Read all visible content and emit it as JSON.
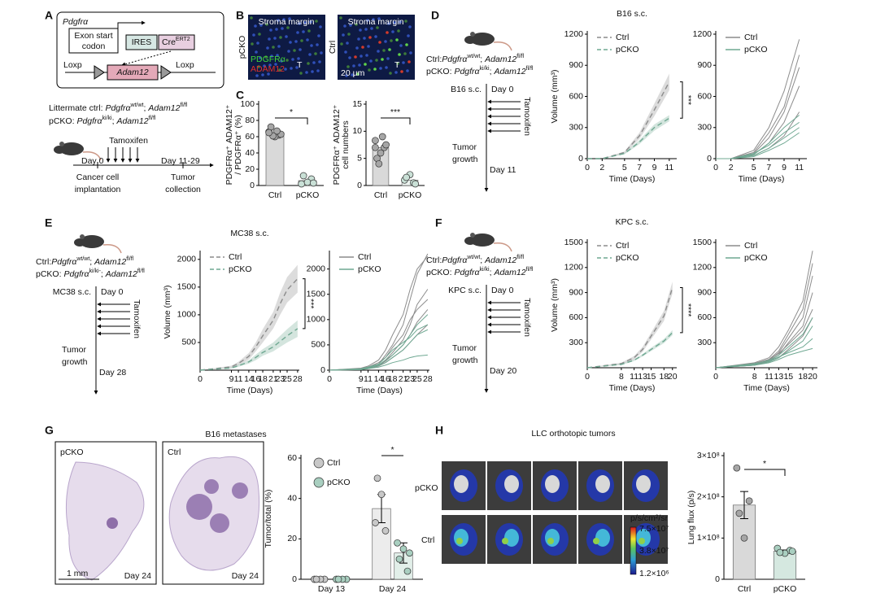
{
  "figure": {
    "panels": [
      "A",
      "B",
      "C",
      "D",
      "E",
      "F",
      "G",
      "H"
    ],
    "a": {
      "gene": "Pdgfrα",
      "exon": [
        "Exon start",
        "codon"
      ],
      "ires": "IRES",
      "cre": [
        "Cre",
        "ERT2"
      ],
      "loxp": [
        "Loxp",
        "Loxp"
      ],
      "adam": "Adam12",
      "ctrl": [
        "Littermate ctrl: ",
        "Pdgfrα",
        "wt/wt",
        "; ",
        "Adam12",
        "fl/fl"
      ],
      "pcko": [
        "pCKO: ",
        "Pdgfrα",
        "ki/ki",
        "; ",
        "Adam12",
        "fl/fl"
      ],
      "tamoxifen": "Tamoxifen",
      "day0": "Day 0",
      "dayend": "Day 11-29",
      "start": [
        "Cancer cell",
        "implantation"
      ],
      "end": [
        "Tumor",
        "collection"
      ]
    },
    "b": {
      "margin": [
        "Stroma margin",
        "Stroma margin"
      ],
      "rows": [
        "pCKO",
        "Ctrl"
      ],
      "stains": [
        "PDGFRα",
        "ADAM12"
      ],
      "t": [
        "T",
        "T"
      ],
      "scale": "20 µm"
    },
    "schemes": [
      {
        "ctrl": [
          "Ctrl:",
          "Pdgfrα",
          "wt/wt",
          "; ",
          "Adam12",
          "fl/fl"
        ],
        "pcko": [
          "pCKO: ",
          "Pdgfrα",
          "ki/ki",
          "; ",
          "Adam12",
          "fl/fl"
        ],
        "model": "B16 s.c.",
        "day0": "Day 0",
        "tamoxifen": "Tamoxifen",
        "tumor": [
          "Tumor",
          "growth"
        ],
        "end": "Day 11"
      },
      {
        "ctrl": [
          "Ctrl:",
          "Pdgfrα",
          "wt/wt",
          "; ",
          "Adam12",
          "fl/fl"
        ],
        "pcko": [
          "pCKO: ",
          "Pdgfrα",
          "ki/ki-",
          "; ",
          "Adam12",
          "fl/fl"
        ],
        "model": "MC38 s.c.",
        "day0": "Day 0",
        "tamoxifen": "Tamoxifen",
        "tumor": [
          "Tumor",
          "growth"
        ],
        "end": "Day 28"
      },
      {
        "ctrl": [
          "Ctrl:",
          "Pdgfrα",
          "wt/wt",
          "; ",
          "Adam12",
          "fl/fl"
        ],
        "pcko": [
          "pCKO: ",
          "Pdgfrα",
          "ki/ki",
          "; ",
          "Adam12",
          "fl/fl"
        ],
        "model": "KPC s.c.",
        "day0": "Day 0",
        "tamoxifen": "Tamoxifen",
        "tumor": [
          "Tumor",
          "growth"
        ],
        "end": "Day 20"
      }
    ],
    "g": {
      "title": "B16 metastases",
      "labels": [
        "pCKO",
        "Ctrl"
      ],
      "days": [
        "Day 24",
        "Day 24"
      ],
      "scale": "1 mm"
    },
    "h": {
      "title": "LLC orthotopic tumors",
      "rows": [
        "pCKO",
        "Ctrl"
      ],
      "unit": "p/s/cm²/sr",
      "scale": [
        "7.5×10⁷",
        "3.8×10⁷",
        "1.2×10⁶"
      ]
    }
  },
  "chart_data": [
    {
      "type": "bar",
      "ylabel": [
        "PDGFRα⁺ ADAM12⁺",
        "/ PDGFRα⁺ (%)"
      ],
      "categories": [
        "Ctrl",
        "pCKO"
      ],
      "values": [
        65,
        6
      ],
      "points": [
        [
          66,
          62,
          60,
          72,
          63,
          67,
          61,
          65
        ],
        [
          2,
          8,
          4,
          12,
          3
        ]
      ],
      "colors": [
        "#a6a6a6",
        "#c9e0d6"
      ],
      "bar_colors": [
        "#d9d9d9",
        "#eef5f2"
      ],
      "ylim": [
        0,
        100
      ],
      "yticks": [
        0,
        20,
        40,
        60,
        80,
        100
      ],
      "sig": "*"
    },
    {
      "type": "bar",
      "ylabel": [
        "PDGFRα⁺ ADAM12⁺",
        "cell numbers"
      ],
      "categories": [
        "Ctrl",
        "pCKO"
      ],
      "values": [
        7,
        1
      ],
      "points": [
        [
          8.3,
          7,
          6,
          5,
          7.5,
          9,
          4,
          7
        ],
        [
          1,
          0.5,
          2,
          1.5,
          0.3
        ]
      ],
      "colors": [
        "#a6a6a6",
        "#c9e0d6"
      ],
      "bar_colors": [
        "#d9d9d9",
        "#eef5f2"
      ],
      "ylim": [
        0,
        15
      ],
      "yticks": [
        0,
        5,
        10,
        15
      ],
      "sig": "***"
    },
    {
      "type": "line",
      "title": "B16 s.c.",
      "xlabel": "Time (Days)",
      "ylabel": "Volume (mm³)",
      "x": [
        0,
        2,
        5,
        7,
        9,
        11
      ],
      "xlim": [
        0,
        12
      ],
      "xticks": [
        0,
        2,
        5,
        7,
        9,
        11
      ],
      "ylim": [
        0,
        1200
      ],
      "yticks": [
        0,
        300,
        600,
        900,
        1200
      ],
      "dashed": true,
      "sig": "***",
      "series": [
        {
          "name": "Ctrl",
          "color": "#8c8c8c",
          "values": [
            0,
            0,
            60,
            220,
            470,
            740
          ],
          "errors": [
            0,
            0,
            10,
            30,
            60,
            80
          ]
        },
        {
          "name": "pCKO",
          "color": "#6fa892",
          "values": [
            0,
            0,
            50,
            160,
            300,
            390
          ],
          "errors": [
            0,
            0,
            8,
            20,
            30,
            30
          ]
        }
      ]
    },
    {
      "type": "line",
      "xlabel": "Time (Days)",
      "x": [
        0,
        2,
        5,
        7,
        9,
        11
      ],
      "xlim": [
        0,
        12
      ],
      "xticks": [
        0,
        2,
        5,
        7,
        9,
        11
      ],
      "ylim": [
        0,
        1200
      ],
      "yticks": [
        0,
        300,
        600,
        900,
        1200
      ],
      "series": [
        {
          "name": "Ctrl",
          "color": "#8c8c8c",
          "values": [
            [
              0,
              0,
              80,
              300,
              650,
              1150
            ],
            [
              0,
              0,
              60,
              250,
              500,
              1000
            ],
            [
              0,
              0,
              50,
              200,
              450,
              880
            ],
            [
              0,
              0,
              40,
              150,
              350,
              700
            ],
            [
              0,
              0,
              30,
              100,
              220,
              450
            ]
          ]
        },
        {
          "name": "pCKO",
          "color": "#6fa892",
          "values": [
            [
              0,
              0,
              40,
              150,
              300,
              420
            ],
            [
              0,
              0,
              50,
              130,
              250,
              350
            ],
            [
              0,
              0,
              30,
              100,
              200,
              300
            ],
            [
              0,
              0,
              20,
              80,
              150,
              250
            ]
          ]
        }
      ]
    },
    {
      "type": "line",
      "title": "MC38 s.c.",
      "xlabel": "Time (Days)",
      "ylabel": "Volume (mm³)",
      "x": [
        0,
        9,
        11,
        14,
        16,
        18,
        21,
        23,
        25,
        28
      ],
      "xlim": [
        0,
        28.5
      ],
      "xticks": [
        0,
        9,
        11,
        14,
        16,
        18,
        21,
        23,
        25,
        28
      ],
      "ylim": [
        0,
        2100
      ],
      "yticks": [
        500,
        1000,
        1500,
        2000
      ],
      "dashed": true,
      "sig": "***",
      "series": [
        {
          "name": "Ctrl",
          "color": "#8c8c8c",
          "values": [
            0,
            60,
            120,
            250,
            420,
            620,
            900,
            1200,
            1450,
            1650
          ],
          "errors": [
            0,
            20,
            30,
            60,
            80,
            120,
            150,
            200,
            230,
            250
          ]
        },
        {
          "name": "pCKO",
          "color": "#6fa892",
          "values": [
            0,
            40,
            80,
            150,
            230,
            320,
            420,
            520,
            620,
            750
          ],
          "errors": [
            0,
            10,
            20,
            30,
            50,
            60,
            80,
            100,
            120,
            150
          ]
        }
      ]
    },
    {
      "type": "line",
      "xlabel": "Time (Days)",
      "x": [
        0,
        9,
        11,
        14,
        16,
        18,
        21,
        23,
        25,
        28
      ],
      "xlim": [
        0,
        28.5
      ],
      "xticks": [
        0,
        9,
        11,
        14,
        16,
        18,
        21,
        23,
        25,
        28
      ],
      "ylim": [
        0,
        2300
      ],
      "yticks": [
        0,
        500,
        1000,
        1500,
        2000
      ],
      "series": [
        {
          "name": "Ctrl",
          "color": "#8c8c8c",
          "values": [
            [
              0,
              30,
              60,
              120,
              300,
              500,
              900,
              1400,
              1900,
              2300
            ],
            [
              0,
              40,
              80,
              200,
              400,
              700,
              1100,
              1600,
              2000,
              2250
            ],
            [
              0,
              20,
              50,
              100,
              200,
              350,
              600,
              900,
              1300,
              1600
            ],
            [
              0,
              30,
              60,
              150,
              250,
              450,
              700,
              1000,
              1200,
              1400
            ],
            [
              0,
              20,
              40,
              90,
              180,
              300,
              500,
              700,
              950,
              1200
            ],
            [
              0,
              10,
              30,
              80,
              150,
              250,
              400,
              550,
              700,
              900
            ]
          ]
        },
        {
          "name": "pCKO",
          "color": "#6fa892",
          "values": [
            [
              0,
              20,
              50,
              100,
              200,
              300,
              500,
              700,
              900,
              1100
            ],
            [
              0,
              30,
              60,
              120,
              250,
              400,
              550,
              650,
              800,
              900
            ],
            [
              0,
              20,
              40,
              90,
              150,
              250,
              400,
              550,
              700,
              800
            ],
            [
              0,
              10,
              30,
              60,
              100,
              150,
              200,
              250,
              280,
              300
            ]
          ]
        }
      ]
    },
    {
      "type": "line",
      "title": "KPC s.c.",
      "xlabel": "Time (Days)",
      "ylabel": "Volume (mm³)",
      "x": [
        0,
        8,
        11,
        13,
        15,
        18,
        20
      ],
      "xlim": [
        0,
        21
      ],
      "xticks": [
        0,
        8,
        11,
        13,
        15,
        18,
        20
      ],
      "ylim": [
        0,
        1500
      ],
      "yticks": [
        300,
        600,
        900,
        1200,
        1500
      ],
      "dashed": true,
      "sig": "****",
      "series": [
        {
          "name": "Ctrl",
          "color": "#8c8c8c",
          "values": [
            0,
            50,
            120,
            220,
            380,
            620,
            960
          ],
          "errors": [
            0,
            10,
            20,
            30,
            40,
            60,
            70
          ]
        },
        {
          "name": "pCKO",
          "color": "#6fa892",
          "values": [
            0,
            40,
            90,
            150,
            220,
            320,
            420
          ],
          "errors": [
            0,
            8,
            10,
            15,
            20,
            25,
            30
          ]
        }
      ]
    },
    {
      "type": "line",
      "xlabel": "Time (Days)",
      "x": [
        0,
        8,
        11,
        13,
        15,
        18,
        20
      ],
      "xlim": [
        0,
        21
      ],
      "xticks": [
        0,
        8,
        11,
        13,
        15,
        18,
        20
      ],
      "ylim": [
        0,
        1500
      ],
      "yticks": [
        300,
        600,
        900,
        1200,
        1500
      ],
      "series": [
        {
          "name": "Ctrl",
          "color": "#8c8c8c",
          "values": [
            [
              0,
              60,
              120,
              250,
              450,
              800,
              1400
            ],
            [
              0,
              50,
              100,
              200,
              400,
              700,
              1250
            ],
            [
              0,
              40,
              90,
              180,
              350,
              600,
              1100
            ],
            [
              0,
              30,
              80,
              150,
              300,
              500,
              900
            ],
            [
              0,
              50,
              100,
              170,
              280,
              450,
              700
            ],
            [
              0,
              40,
              70,
              120,
              220,
              380,
              600
            ]
          ]
        },
        {
          "name": "pCKO",
          "color": "#6fa892",
          "values": [
            [
              0,
              40,
              90,
              150,
              250,
              400,
              600
            ],
            [
              0,
              30,
              70,
              120,
              200,
              320,
              500
            ],
            [
              0,
              50,
              80,
              130,
              180,
              250,
              350
            ],
            [
              0,
              30,
              60,
              100,
              150,
              200,
              230
            ]
          ]
        }
      ]
    },
    {
      "type": "bar",
      "ylabel": "Tumor/total (%)",
      "categories": [
        "Day 13",
        "Day 24"
      ],
      "ylim": [
        0,
        60
      ],
      "yticks": [
        0,
        20,
        40,
        60
      ],
      "sig": "*",
      "series": [
        {
          "name": "Ctrl",
          "color": "#c8c8c8",
          "bar_color": "#ececec",
          "values": [
            0,
            35
          ],
          "errors": [
            0,
            7
          ],
          "points": [
            [
              0,
              0,
              0,
              0
            ],
            [
              28,
              24,
              42,
              50
            ]
          ]
        },
        {
          "name": "pCKO",
          "color": "#a9cfc0",
          "bar_color": "#e2efe9",
          "values": [
            0,
            13
          ],
          "errors": [
            0,
            5
          ],
          "points": [
            [
              0,
              0,
              0,
              0
            ],
            [
              18,
              4,
              15,
              10,
              13
            ]
          ]
        }
      ]
    },
    {
      "type": "bar",
      "ylabel": "Lung flux (p/s)",
      "categories": [
        "Ctrl",
        "pCKO"
      ],
      "values": [
        180000000,
        68000000
      ],
      "errors": [
        33000000,
        3000000
      ],
      "points": [
        [
          270000000,
          190000000,
          100000000,
          160000000
        ],
        [
          75000000,
          70000000,
          63000000,
          65000000,
          68000000
        ]
      ],
      "colors": [
        "#a6a6a6",
        "#a9cfc0"
      ],
      "bar_colors": [
        "#d9d9d9",
        "#d5e8e0"
      ],
      "ylim": [
        0,
        300000000
      ],
      "yticks": [
        0,
        {
          "value": 100000000,
          "label": "1×10⁸"
        },
        {
          "value": 200000000,
          "label": "2×10⁸"
        },
        {
          "value": 300000000,
          "label": "3×10⁸"
        }
      ],
      "sig": "*"
    }
  ]
}
